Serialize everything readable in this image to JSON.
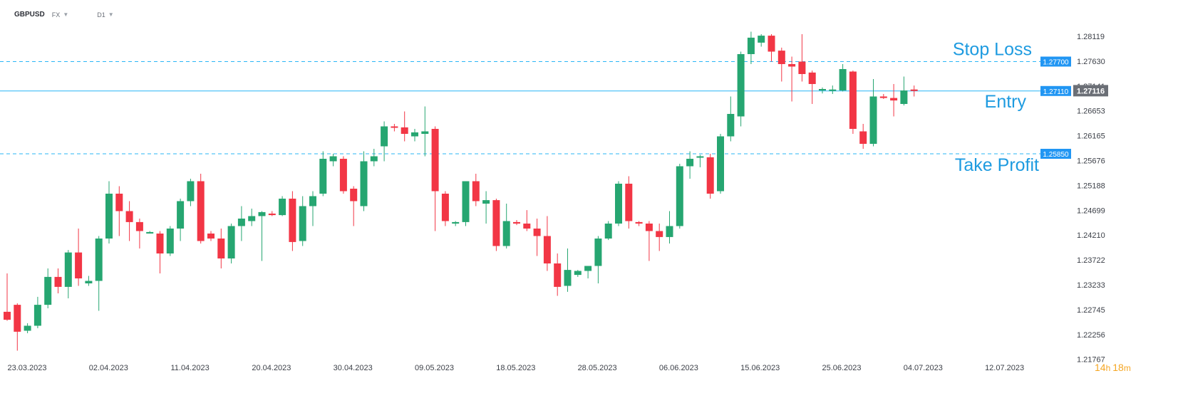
{
  "header": {
    "symbol": "GBPUSD",
    "market": "FX",
    "timeframe": "D1",
    "dropdown_icon": "chevron-down-icon"
  },
  "timer": {
    "hours": "14",
    "h_unit": "h",
    "minutes": "18",
    "m_unit": "m"
  },
  "colors": {
    "up": "#26a671",
    "down": "#f23645",
    "level_line": "#29b6f6",
    "label_text": "#1e9be0",
    "price_tag": "#2196f3",
    "current_tag": "#6b6f76",
    "axis_text": "#3b3f47",
    "timer_color": "#f5a623"
  },
  "chart_data": {
    "type": "candlestick",
    "title": "",
    "xlabel": "",
    "ylabel": "",
    "ylim": [
      1.2165,
      1.2865
    ],
    "y_ticks": [
      "1.28119",
      "1.27630",
      "1.27141",
      "1.26653",
      "1.26165",
      "1.25676",
      "1.25188",
      "1.24699",
      "1.24210",
      "1.23722",
      "1.23233",
      "1.22745",
      "1.22256",
      "1.21767"
    ],
    "x_ticks": [
      "23.03.2023",
      "02.04.2023",
      "11.04.2023",
      "20.04.2023",
      "30.04.2023",
      "09.05.2023",
      "18.05.2023",
      "28.05.2023",
      "06.06.2023",
      "15.06.2023",
      "25.06.2023",
      "04.07.2023",
      "12.07.2023"
    ],
    "levels": [
      {
        "name": "Stop Loss",
        "price": 1.277,
        "tag": "1.27700"
      },
      {
        "name": "Entry",
        "price": 1.2711,
        "tag": "1.27110"
      },
      {
        "name": "Take Profit",
        "price": 1.2585,
        "tag": "1.25850"
      }
    ],
    "current_price": {
      "price": 1.27116,
      "tag": "1.27116"
    },
    "candles": [
      [
        1.2268,
        1.2345,
        1.225,
        1.2252
      ],
      [
        1.2282,
        1.2285,
        1.219,
        1.2228
      ],
      [
        1.223,
        1.2245,
        1.2225,
        1.224
      ],
      [
        1.224,
        1.2298,
        1.2235,
        1.2282
      ],
      [
        1.2282,
        1.2355,
        1.2275,
        1.2338
      ],
      [
        1.2338,
        1.2355,
        1.2305,
        1.2318
      ],
      [
        1.2318,
        1.2392,
        1.2295,
        1.2387
      ],
      [
        1.2387,
        1.2435,
        1.232,
        1.2335
      ],
      [
        1.2325,
        1.234,
        1.232,
        1.233
      ],
      [
        1.233,
        1.242,
        1.227,
        1.2415
      ],
      [
        1.2415,
        1.253,
        1.2405,
        1.2505
      ],
      [
        1.2505,
        1.252,
        1.242,
        1.247
      ],
      [
        1.247,
        1.249,
        1.241,
        1.2448
      ],
      [
        1.2448,
        1.2455,
        1.2395,
        1.243
      ],
      [
        1.2425,
        1.243,
        1.2425,
        1.2428
      ],
      [
        1.2425,
        1.243,
        1.2345,
        1.2385
      ],
      [
        1.2385,
        1.244,
        1.238,
        1.2435
      ],
      [
        1.2435,
        1.2495,
        1.241,
        1.249
      ],
      [
        1.249,
        1.2535,
        1.248,
        1.253
      ],
      [
        1.253,
        1.2545,
        1.2405,
        1.241
      ],
      [
        1.2425,
        1.243,
        1.241,
        1.2415
      ],
      [
        1.2415,
        1.2435,
        1.2355,
        1.2375
      ],
      [
        1.2375,
        1.2445,
        1.2365,
        1.244
      ],
      [
        1.244,
        1.248,
        1.241,
        1.2455
      ],
      [
        1.245,
        1.2475,
        1.244,
        1.246
      ],
      [
        1.246,
        1.247,
        1.237,
        1.2468
      ],
      [
        1.2465,
        1.247,
        1.246,
        1.2462
      ],
      [
        1.2462,
        1.25,
        1.246,
        1.2495
      ],
      [
        1.2495,
        1.251,
        1.239,
        1.2408
      ],
      [
        1.241,
        1.25,
        1.24,
        1.248
      ],
      [
        1.248,
        1.251,
        1.244,
        1.25
      ],
      [
        1.2505,
        1.259,
        1.25,
        1.2575
      ],
      [
        1.257,
        1.2585,
        1.256,
        1.258
      ],
      [
        1.2575,
        1.258,
        1.2505,
        1.251
      ],
      [
        1.2515,
        1.252,
        1.244,
        1.249
      ],
      [
        1.248,
        1.259,
        1.247,
        1.257
      ],
      [
        1.257,
        1.2595,
        1.256,
        1.258
      ],
      [
        1.26,
        1.265,
        1.257,
        1.264
      ],
      [
        1.264,
        1.2645,
        1.263,
        1.2638
      ],
      [
        1.2638,
        1.267,
        1.261,
        1.2625
      ],
      [
        1.262,
        1.2635,
        1.261,
        1.2628
      ],
      [
        1.2625,
        1.268,
        1.258,
        1.263
      ],
      [
        1.2635,
        1.264,
        1.243,
        1.251
      ],
      [
        1.2505,
        1.251,
        1.244,
        1.245
      ],
      [
        1.2445,
        1.245,
        1.244,
        1.2448
      ],
      [
        1.2448,
        1.253,
        1.244,
        1.253
      ],
      [
        1.253,
        1.2545,
        1.248,
        1.249
      ],
      [
        1.2485,
        1.251,
        1.2445,
        1.2492
      ],
      [
        1.2492,
        1.2495,
        1.239,
        1.24
      ],
      [
        1.24,
        1.2485,
        1.2395,
        1.245
      ],
      [
        1.2448,
        1.2452,
        1.2442,
        1.2445
      ],
      [
        1.2445,
        1.2472,
        1.243,
        1.2435
      ],
      [
        1.2435,
        1.2455,
        1.238,
        1.242
      ],
      [
        1.242,
        1.246,
        1.235,
        1.2365
      ],
      [
        1.2365,
        1.2385,
        1.23,
        1.2318
      ],
      [
        1.232,
        1.2395,
        1.2308,
        1.2352
      ],
      [
        1.2342,
        1.2352,
        1.2338,
        1.235
      ],
      [
        1.235,
        1.236,
        1.2335,
        1.236
      ],
      [
        1.236,
        1.242,
        1.2325,
        1.2415
      ],
      [
        1.2415,
        1.245,
        1.2412,
        1.2445
      ],
      [
        1.2445,
        1.253,
        1.244,
        1.2525
      ],
      [
        1.2525,
        1.254,
        1.2435,
        1.245
      ],
      [
        1.2448,
        1.245,
        1.244,
        1.2445
      ],
      [
        1.2445,
        1.245,
        1.237,
        1.243
      ],
      [
        1.243,
        1.2445,
        1.239,
        1.2418
      ],
      [
        1.2418,
        1.247,
        1.2405,
        1.244
      ],
      [
        1.244,
        1.2565,
        1.2435,
        1.256
      ],
      [
        1.256,
        1.259,
        1.2535,
        1.2575
      ],
      [
        1.2578,
        1.2583,
        1.2558,
        1.258
      ],
      [
        1.2578,
        1.2585,
        1.2495,
        1.2505
      ],
      [
        1.251,
        1.2625,
        1.2505,
        1.262
      ],
      [
        1.262,
        1.27,
        1.261,
        1.2665
      ],
      [
        1.266,
        1.279,
        1.264,
        1.2785
      ],
      [
        1.2785,
        1.283,
        1.2765,
        1.2818
      ],
      [
        1.2808,
        1.2825,
        1.28,
        1.2822
      ],
      [
        1.2822,
        1.2825,
        1.277,
        1.279
      ],
      [
        1.2792,
        1.2798,
        1.273,
        1.2765
      ],
      [
        1.2765,
        1.278,
        1.269,
        1.276
      ],
      [
        1.277,
        1.2825,
        1.273,
        1.2745
      ],
      [
        1.2748,
        1.2752,
        1.2685,
        1.2725
      ],
      [
        1.2712,
        1.2718,
        1.2706,
        1.2715
      ],
      [
        1.2712,
        1.2722,
        1.2705,
        1.2714
      ],
      [
        1.2712,
        1.2765,
        1.271,
        1.2755
      ],
      [
        1.275,
        1.2752,
        1.2625,
        1.2635
      ],
      [
        1.263,
        1.2645,
        1.2595,
        1.2605
      ],
      [
        1.2605,
        1.2735,
        1.26,
        1.27
      ],
      [
        1.27,
        1.2705,
        1.2695,
        1.2697
      ],
      [
        1.2697,
        1.2725,
        1.266,
        1.2692
      ],
      [
        1.2685,
        1.274,
        1.2682,
        1.2712
      ],
      [
        1.2714,
        1.2722,
        1.27,
        1.2711
      ]
    ]
  }
}
